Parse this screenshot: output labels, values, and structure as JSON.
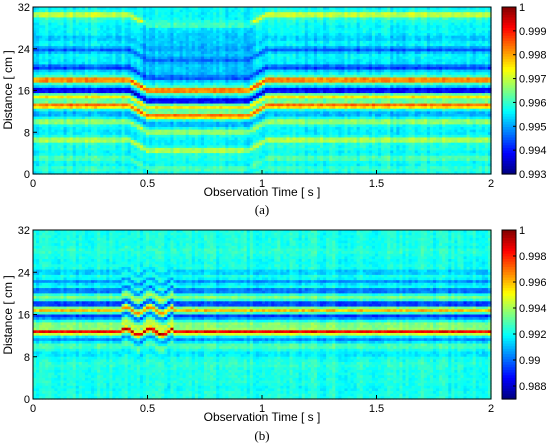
{
  "chart_data": [
    {
      "type": "heatmap",
      "panel_label": "(a)",
      "xlabel": "Observation Time [ s ]",
      "ylabel": "Distance [ cm ]",
      "xlim": [
        0,
        2
      ],
      "ylim": [
        0,
        32
      ],
      "x_ticks": [
        0,
        0.5,
        1,
        1.5,
        2
      ],
      "x_tick_labels": [
        "0",
        "0.5",
        "1",
        "1.5",
        "2"
      ],
      "y_ticks": [
        0,
        8,
        16,
        24,
        32
      ],
      "y_tick_labels": [
        "0",
        "8",
        "16",
        "24",
        "32"
      ],
      "colorbar": {
        "min": 0.993,
        "max": 1.0,
        "ticks": [
          0.993,
          0.994,
          0.995,
          0.996,
          0.997,
          0.998,
          0.999,
          1
        ],
        "tick_labels": [
          "0.993",
          "0.994",
          "0.995",
          "0.996",
          "0.997",
          "0.998",
          "0.999",
          "1"
        ]
      },
      "colormap": "jet",
      "dip_interval_s": [
        0.42,
        1.02
      ],
      "dip_shift_cm": -2.0,
      "bands": [
        {
          "y": 30.5,
          "value": 0.9972
        },
        {
          "y": 29.3,
          "value": 0.9958
        },
        {
          "y": 26.0,
          "value": 0.9952
        },
        {
          "y": 23.8,
          "value": 0.9945
        },
        {
          "y": 21.8,
          "value": 0.9955
        },
        {
          "y": 20.4,
          "value": 0.9942
        },
        {
          "y": 18.0,
          "value": 0.9987
        },
        {
          "y": 16.0,
          "value": 0.9935
        },
        {
          "y": 14.8,
          "value": 0.9975
        },
        {
          "y": 13.1,
          "value": 0.9985
        },
        {
          "y": 11.5,
          "value": 0.995
        },
        {
          "y": 10.0,
          "value": 0.9968
        },
        {
          "y": 8.0,
          "value": 0.9955
        },
        {
          "y": 6.5,
          "value": 0.997
        },
        {
          "y": 5.0,
          "value": 0.9958
        },
        {
          "y": 3.0,
          "value": 0.9962
        },
        {
          "y": 1.0,
          "value": 0.996
        }
      ]
    },
    {
      "type": "heatmap",
      "panel_label": "(b)",
      "xlabel": "Observation Time [ s ]",
      "ylabel": "Distance [ cm ]",
      "xlim": [
        0,
        2
      ],
      "ylim": [
        0,
        32
      ],
      "x_ticks": [
        0,
        0.5,
        1,
        1.5,
        2
      ],
      "x_tick_labels": [
        "0",
        "0.5",
        "1",
        "1.5",
        "2"
      ],
      "y_ticks": [
        0,
        8,
        16,
        24,
        32
      ],
      "y_tick_labels": [
        "0",
        "8",
        "16",
        "24",
        "32"
      ],
      "colorbar": {
        "min": 0.987,
        "max": 1.0,
        "ticks": [
          0.988,
          0.99,
          0.992,
          0.994,
          0.996,
          0.998,
          1
        ],
        "tick_labels": [
          "0.988",
          "0.99",
          "0.992",
          "0.994",
          "0.996",
          "0.998",
          "1"
        ]
      },
      "colormap": "jet",
      "disturbance_interval_s": [
        0.38,
        0.62
      ],
      "bands": [
        {
          "y": 28.0,
          "value": 0.9925
        },
        {
          "y": 26.0,
          "value": 0.992
        },
        {
          "y": 24.0,
          "value": 0.991
        },
        {
          "y": 22.2,
          "value": 0.9905
        },
        {
          "y": 20.5,
          "value": 0.9895
        },
        {
          "y": 19.2,
          "value": 0.9935
        },
        {
          "y": 18.0,
          "value": 0.9885
        },
        {
          "y": 16.8,
          "value": 0.996
        },
        {
          "y": 15.6,
          "value": 0.989
        },
        {
          "y": 14.0,
          "value": 0.994
        },
        {
          "y": 12.7,
          "value": 0.9985
        },
        {
          "y": 11.2,
          "value": 0.9905
        },
        {
          "y": 10.0,
          "value": 0.993
        },
        {
          "y": 8.5,
          "value": 0.9915
        },
        {
          "y": 6.5,
          "value": 0.9925
        },
        {
          "y": 4.0,
          "value": 0.9922
        },
        {
          "y": 2.0,
          "value": 0.992
        }
      ]
    }
  ]
}
